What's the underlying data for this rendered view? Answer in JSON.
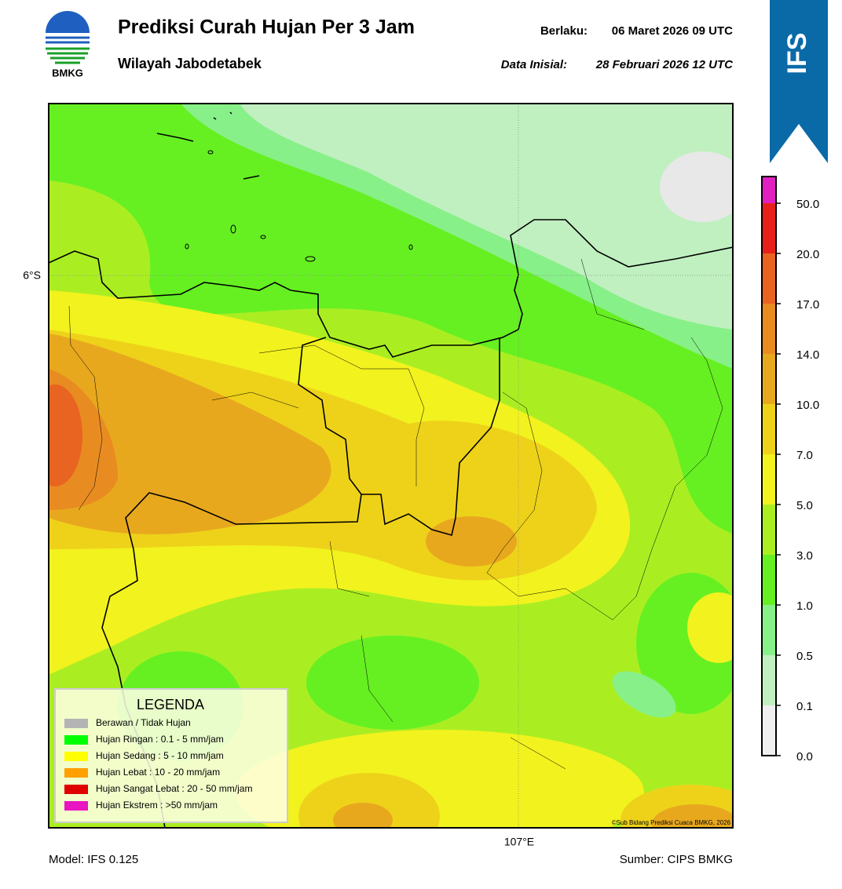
{
  "logo": {
    "label": "BMKG"
  },
  "header": {
    "title": "Prediksi Curah Hujan Per 3 Jam",
    "subtitle": "Wilayah Jabodetabek",
    "valid_label": "Berlaku:",
    "valid_time": "06 Maret 2026 09 UTC",
    "init_label": "Data Inisial:",
    "init_time": "28 Februari 2026 12 UTC"
  },
  "badge": "IFS",
  "map": {
    "lat_label": "6°S",
    "lon_label": "107°E",
    "credit": "©Sub Bidang Prediksi Cuaca BMKG, 2026"
  },
  "legend": {
    "title": "LEGENDA",
    "items": [
      {
        "label": "Berawan / Tidak Hujan",
        "color": "#b4b4b4"
      },
      {
        "label": "Hujan Ringan : 0.1 - 5 mm/jam",
        "color": "#00ff00"
      },
      {
        "label": "Hujan Sedang : 5 - 10 mm/jam",
        "color": "#ffff00"
      },
      {
        "label": "Hujan Lebat : 10 - 20 mm/jam",
        "color": "#ffa000"
      },
      {
        "label": "Hujan Sangat Lebat : 20 - 50 mm/jam",
        "color": "#e00000"
      },
      {
        "label": "Hujan Ekstrem : >50 mm/jam",
        "color": "#e815c0"
      }
    ]
  },
  "colorbar": {
    "ticks": [
      "0.0",
      "0.1",
      "0.5",
      "1.0",
      "3.0",
      "5.0",
      "7.0",
      "10.0",
      "14.0",
      "17.0",
      "20.0",
      "50.0"
    ],
    "colors": [
      "#efefef",
      "#c0f0c0",
      "#88f088",
      "#66f022",
      "#aaee22",
      "#f2f21e",
      "#eed21a",
      "#e8a81e",
      "#e88c22",
      "#e86420",
      "#e8201a",
      "#e020c0"
    ]
  },
  "footer": {
    "model": "Model: IFS 0.125",
    "source": "Sumber: CIPS BMKG"
  }
}
